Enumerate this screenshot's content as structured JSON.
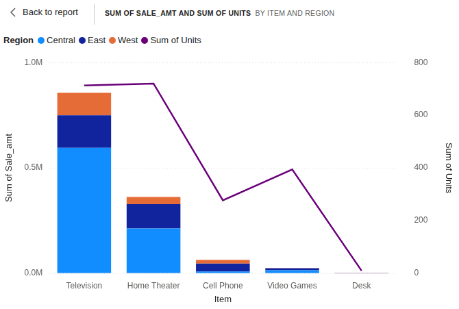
{
  "header": {
    "back": "Back to report",
    "title": "SUM OF SALE_AMT AND SUM OF UNITS",
    "subtitle": "BY ITEM AND REGION"
  },
  "chart_data": {
    "type": "bar",
    "stacked": true,
    "categories": [
      "Television",
      "Home Theater",
      "Cell Phone",
      "Video Games",
      "Desk"
    ],
    "series": [
      {
        "name": "Central",
        "color": "#118dff",
        "values": [
          595000,
          213000,
          9000,
          15000,
          2000
        ]
      },
      {
        "name": "East",
        "color": "#12239e",
        "values": [
          155000,
          115000,
          37000,
          9000,
          500
        ]
      },
      {
        "name": "West",
        "color": "#e66c37",
        "values": [
          106000,
          34000,
          18000,
          1000,
          500
        ]
      },
      {
        "name": "Sum of Units",
        "type": "line",
        "axis": "y2",
        "color": "#6b007b",
        "marker": "none",
        "values": [
          713,
          720,
          277,
          394,
          10
        ]
      }
    ],
    "x_label": "Item",
    "y_label": "Sum of Sale_amt",
    "y2_label": "Sum of Units",
    "ylim": [
      0,
      1000000
    ],
    "yticks": [
      {
        "value": 0,
        "label": "0.0M"
      },
      {
        "value": 500000,
        "label": "0.5M"
      },
      {
        "value": 1000000,
        "label": "1.0M"
      }
    ],
    "y2lim": [
      0,
      800
    ],
    "y2ticks": [
      0,
      200,
      400,
      600,
      800
    ],
    "grid": true,
    "legend": "top-left",
    "legend_title": "Region"
  }
}
